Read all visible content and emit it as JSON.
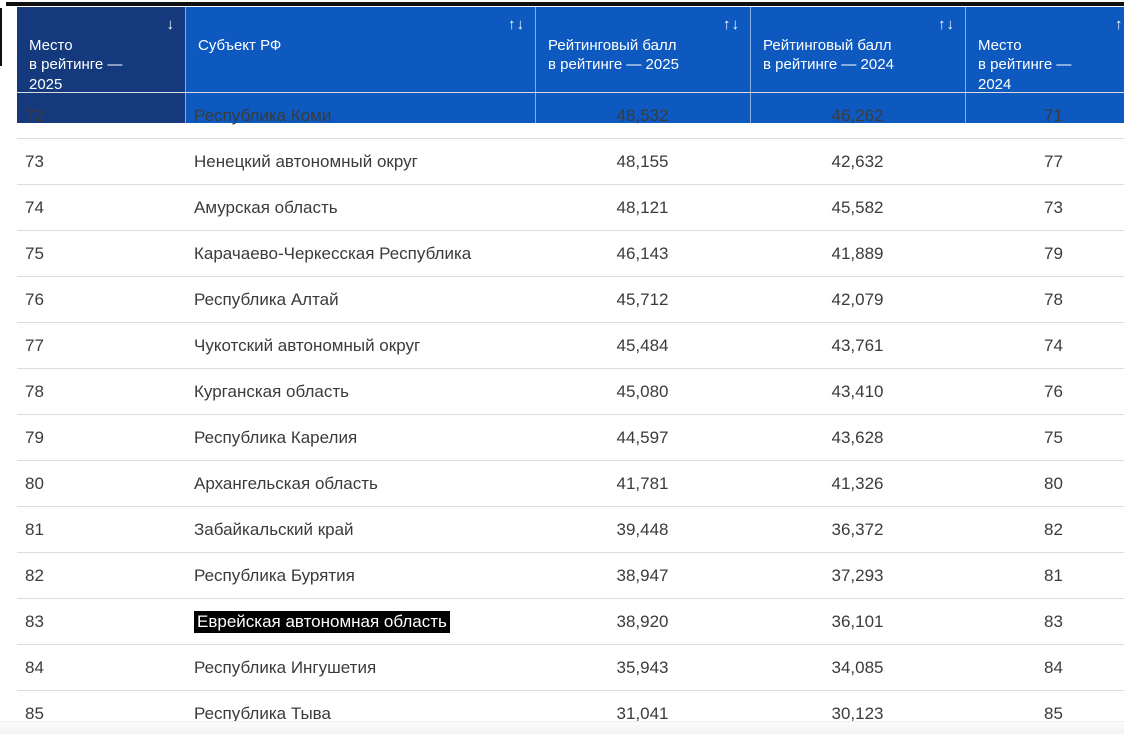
{
  "header": {
    "columns": [
      {
        "id": "rank2025",
        "label": "Место\nв рейтинге —\n2025",
        "icon": "↓",
        "sorted": true
      },
      {
        "id": "region",
        "label": "Субъект РФ",
        "icon": "↑↓",
        "sorted": false
      },
      {
        "id": "score2025",
        "label": "Рейтинговый балл\nв рейтинге — 2025",
        "icon": "↑↓",
        "sorted": false
      },
      {
        "id": "score2024",
        "label": "Рейтинговый балл\nв рейтинге — 2024",
        "icon": "↑↓",
        "sorted": false
      },
      {
        "id": "rank2024",
        "label": "Место\nв рейтинге —\n2024",
        "icon": "↑↓",
        "sorted": false
      }
    ]
  },
  "rows": [
    {
      "rank2025": "72",
      "region": "Республика Коми",
      "score2025": "48,532",
      "score2024": "46,262",
      "rank2024": "71"
    },
    {
      "rank2025": "73",
      "region": "Ненецкий автономный округ",
      "score2025": "48,155",
      "score2024": "42,632",
      "rank2024": "77"
    },
    {
      "rank2025": "74",
      "region": "Амурская область",
      "score2025": "48,121",
      "score2024": "45,582",
      "rank2024": "73"
    },
    {
      "rank2025": "75",
      "region": "Карачаево-Черкесская Республика",
      "score2025": "46,143",
      "score2024": "41,889",
      "rank2024": "79"
    },
    {
      "rank2025": "76",
      "region": "Республика Алтай",
      "score2025": "45,712",
      "score2024": "42,079",
      "rank2024": "78"
    },
    {
      "rank2025": "77",
      "region": "Чукотский автономный округ",
      "score2025": "45,484",
      "score2024": "43,761",
      "rank2024": "74"
    },
    {
      "rank2025": "78",
      "region": "Курганская область",
      "score2025": "45,080",
      "score2024": "43,410",
      "rank2024": "76"
    },
    {
      "rank2025": "79",
      "region": "Республика Карелия",
      "score2025": "44,597",
      "score2024": "43,628",
      "rank2024": "75"
    },
    {
      "rank2025": "80",
      "region": "Архангельская область",
      "score2025": "41,781",
      "score2024": "41,326",
      "rank2024": "80"
    },
    {
      "rank2025": "81",
      "region": "Забайкальский край",
      "score2025": "39,448",
      "score2024": "36,372",
      "rank2024": "82"
    },
    {
      "rank2025": "82",
      "region": "Республика Бурятия",
      "score2025": "38,947",
      "score2024": "37,293",
      "rank2024": "81"
    },
    {
      "rank2025": "83",
      "region": "Еврейская автономная область",
      "score2025": "38,920",
      "score2024": "36,101",
      "rank2024": "83",
      "region_highlighted": true
    },
    {
      "rank2025": "84",
      "region": "Республика Ингушетия",
      "score2025": "35,943",
      "score2024": "34,085",
      "rank2024": "84"
    },
    {
      "rank2025": "85",
      "region": "Республика Тыва",
      "score2025": "31,041",
      "score2024": "30,123",
      "rank2024": "85"
    }
  ],
  "colors": {
    "header_bg": "#0d59c0",
    "header_sorted_bg": "#143a7d",
    "header_text": "#ffffff",
    "body_text": "#3b3b3b",
    "row_divider": "#dcdcdc",
    "highlight_bg": "#000000",
    "highlight_text": "#ffffff"
  }
}
